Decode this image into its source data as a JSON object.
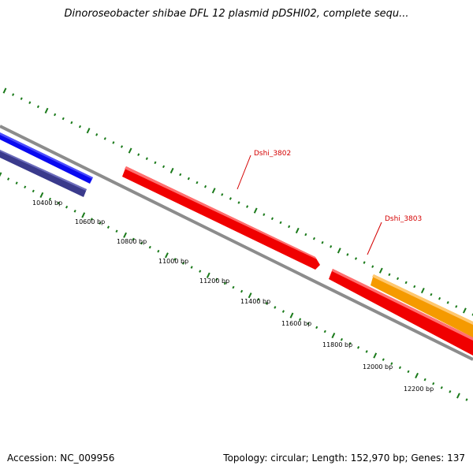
{
  "header": {
    "title": "Dinoroseobacter shibae DFL 12 plasmid pDSHI02, complete sequ..."
  },
  "footer": {
    "accession": "Accession: NC_009956",
    "summary": "Topology: circular; Length: 152,970 bp; Genes: 137"
  },
  "map": {
    "colors": {
      "backbone": "#8c8c8c",
      "ticks": "#1a7a1a",
      "gene_blue": "#0a0af0",
      "gene_navy": "#3a3a8c",
      "gene_red": "#f00000",
      "gene_orange": "#f59a00",
      "gene_label": "#d40000"
    },
    "scale_labels": [
      "10400 bp",
      "10600 bp",
      "10800 bp",
      "11000 bp",
      "11200 bp",
      "11400 bp",
      "11600 bp",
      "11800 bp",
      "12000 bp",
      "12200 bp"
    ],
    "genes": [
      {
        "label": "",
        "color": "blue",
        "track": "outer"
      },
      {
        "label": "",
        "color": "navy",
        "track": "inner"
      },
      {
        "label": "Dshi_3802",
        "color": "red",
        "track": "outer"
      },
      {
        "label": "Dshi_3803",
        "color": "red",
        "track": "outer"
      },
      {
        "label": "",
        "color": "orange",
        "track": "outer2"
      }
    ]
  }
}
